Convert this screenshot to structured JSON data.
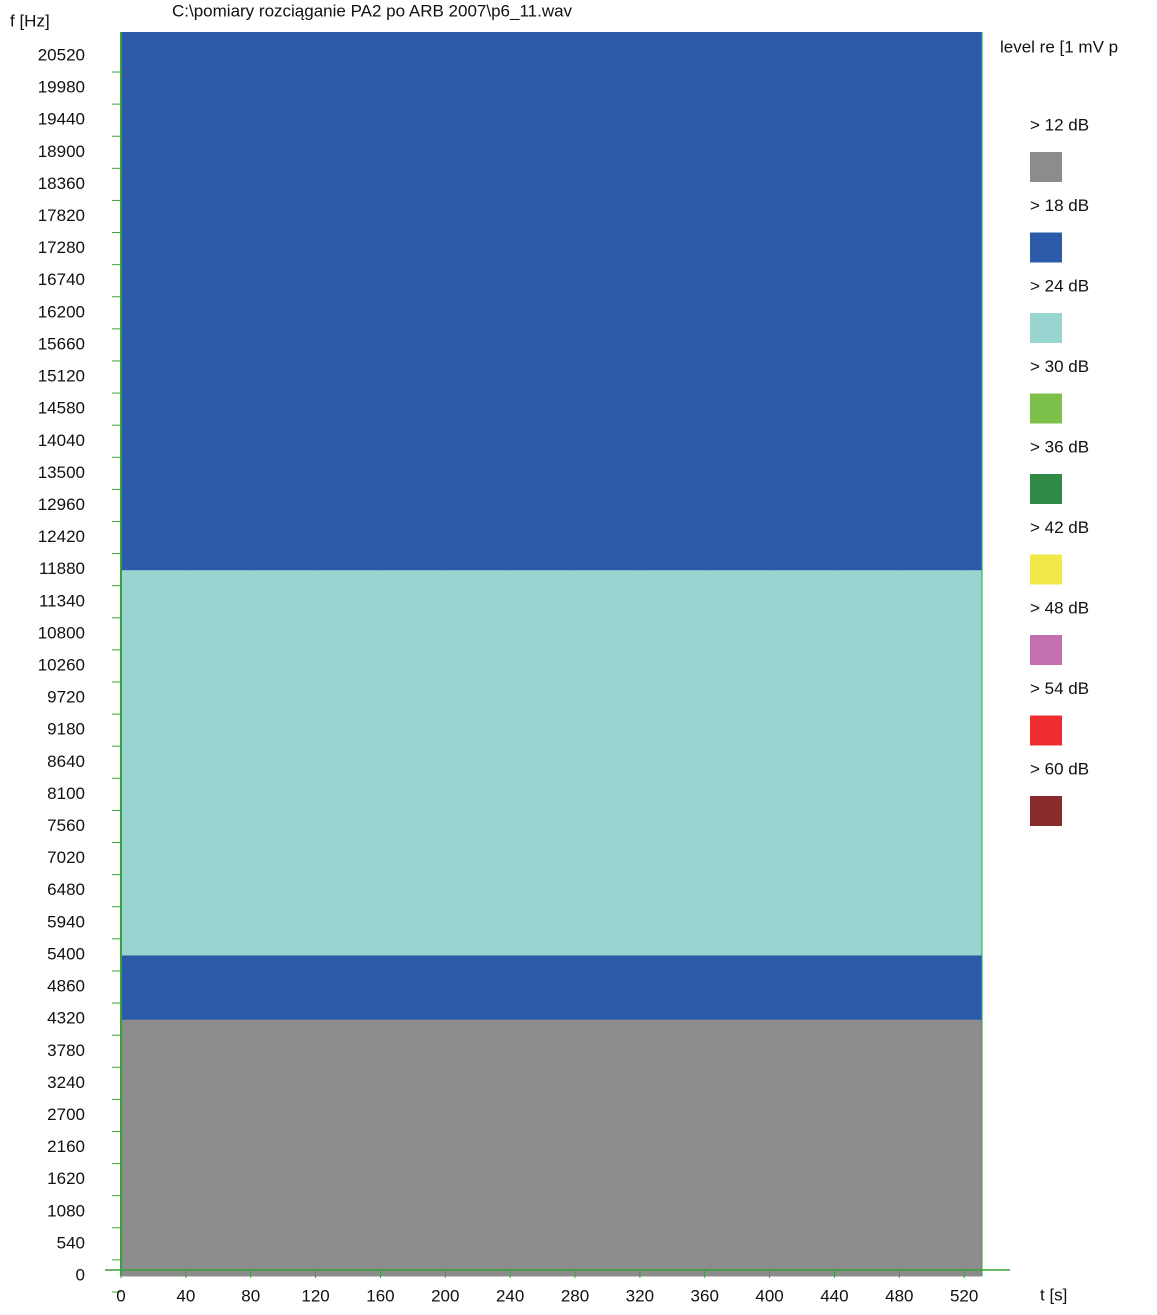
{
  "chart_data": {
    "type": "heatmap",
    "title": "C:\\pomiary rozciąganie PA2 po ARB 2007\\p6_11.wav",
    "ylabel": "f [Hz]",
    "xlabel": "t [s]",
    "legend_title": "level re [1 mV p",
    "xlim": [
      0,
      531
    ],
    "ylim": [
      0,
      20924
    ],
    "xticks": [
      0,
      40,
      80,
      120,
      160,
      200,
      240,
      280,
      320,
      360,
      400,
      440,
      480,
      520
    ],
    "yticks": [
      0,
      540,
      1080,
      1620,
      2160,
      2700,
      3240,
      3780,
      4320,
      4860,
      5400,
      5940,
      6480,
      7020,
      7560,
      8100,
      8640,
      9180,
      9720,
      10260,
      10800,
      11340,
      11880,
      12420,
      12960,
      13500,
      14040,
      14580,
      15120,
      15660,
      16200,
      16740,
      17280,
      17820,
      18360,
      18900,
      19440,
      19980,
      20520
    ],
    "x_bins": [
      0,
      40,
      80,
      120,
      160,
      200,
      240,
      280,
      320,
      360,
      400,
      440,
      480,
      520,
      531
    ],
    "y_bins": [
      0,
      2160,
      4320,
      5400,
      7560,
      9720,
      11880,
      14040,
      16200,
      18360,
      20924
    ],
    "z": [
      [
        12,
        12,
        12,
        12,
        12,
        12,
        12,
        12,
        12,
        12,
        12,
        12,
        12,
        12
      ],
      [
        12,
        12,
        12,
        12,
        12,
        12,
        12,
        12,
        12,
        12,
        12,
        12,
        12,
        12
      ],
      [
        18,
        18,
        18,
        18,
        18,
        18,
        18,
        18,
        18,
        18,
        18,
        18,
        18,
        18
      ],
      [
        24,
        24,
        24,
        24,
        24,
        24,
        24,
        24,
        24,
        24,
        24,
        24,
        24,
        24
      ],
      [
        24,
        24,
        24,
        24,
        24,
        24,
        24,
        24,
        24,
        24,
        24,
        24,
        24,
        24
      ],
      [
        24,
        24,
        24,
        24,
        24,
        24,
        24,
        24,
        24,
        24,
        24,
        24,
        24,
        24
      ],
      [
        18,
        18,
        18,
        18,
        18,
        18,
        18,
        18,
        18,
        18,
        18,
        18,
        18,
        18
      ],
      [
        18,
        18,
        18,
        18,
        18,
        18,
        18,
        18,
        18,
        18,
        18,
        18,
        18,
        18
      ],
      [
        18,
        18,
        18,
        18,
        18,
        18,
        18,
        18,
        18,
        18,
        18,
        18,
        18,
        18
      ],
      [
        18,
        18,
        18,
        18,
        18,
        18,
        18,
        18,
        18,
        18,
        18,
        18,
        18,
        18
      ]
    ],
    "levels": [
      {
        "value": 12,
        "label": "> 12 dB"
      },
      {
        "value": 18,
        "label": "> 18 dB"
      },
      {
        "value": 24,
        "label": "> 24 dB"
      },
      {
        "value": 30,
        "label": "> 30 dB"
      },
      {
        "value": 36,
        "label": "> 36 dB"
      },
      {
        "value": 42,
        "label": "> 42 dB"
      },
      {
        "value": 48,
        "label": "> 48 dB"
      },
      {
        "value": 54,
        "label": "> 54 dB"
      },
      {
        "value": 60,
        "label": "> 60 dB"
      }
    ],
    "level_colors": [
      "#8c8c8c",
      "#2b5aa8",
      "#98d4d0",
      "#7cc04a",
      "#2f8a46",
      "#f1e94a",
      "#c46fb0",
      "#ee2d30",
      "#8b2a2d"
    ]
  }
}
